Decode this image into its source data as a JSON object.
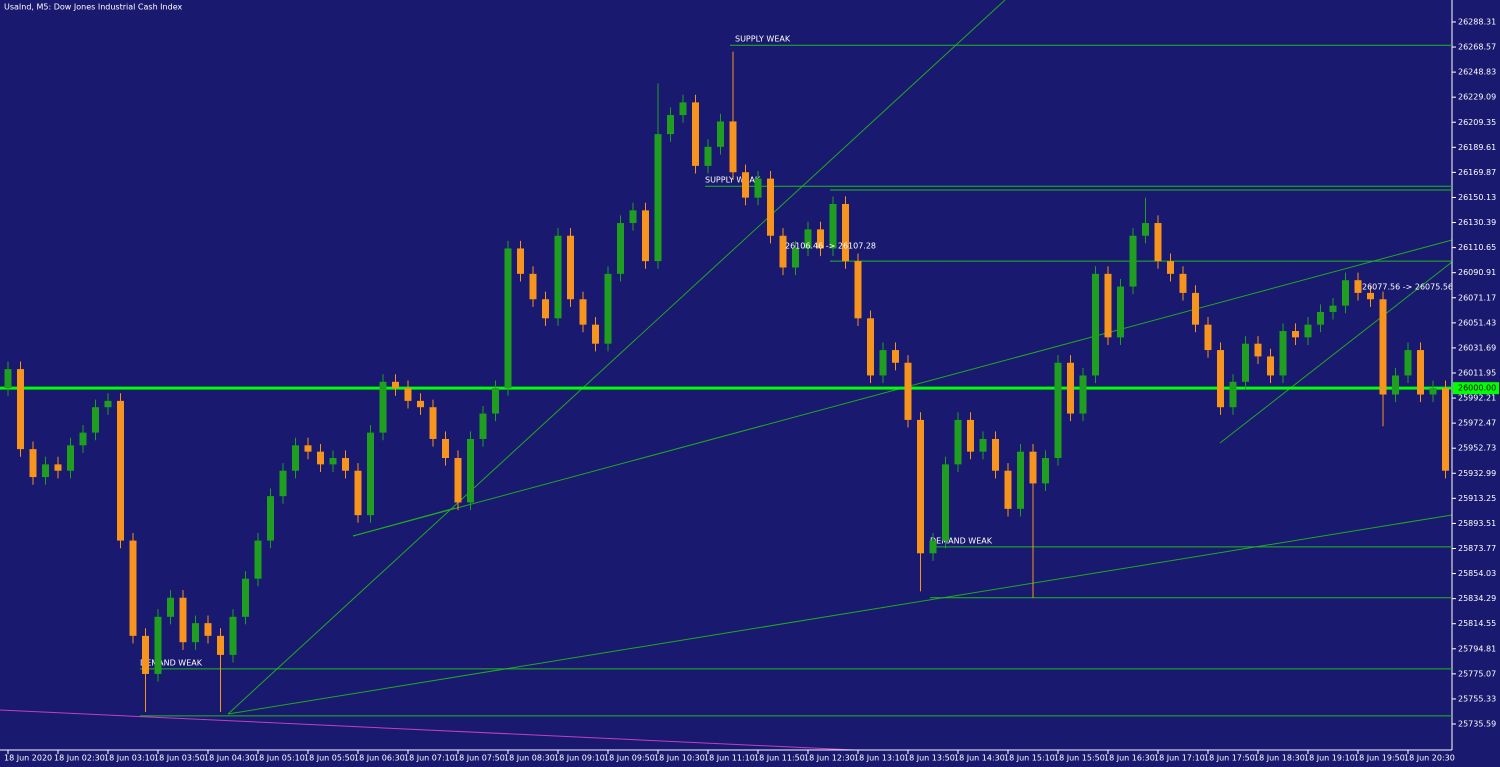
{
  "chart_data": {
    "type": "candlestick",
    "title": "UsaInd, M5:  Dow Jones Industrial Cash Index",
    "categories": [
      "18 Jun 2020",
      null,
      null,
      null,
      "18 Jun 02:30",
      null,
      null,
      null,
      "18 Jun 03:10",
      null,
      null,
      null,
      "18 Jun 03:50",
      null,
      null,
      null,
      "18 Jun 04:30",
      null,
      null,
      null,
      "18 Jun 05:10",
      null,
      null,
      null,
      "18 Jun 05:50",
      null,
      null,
      null,
      "18 Jun 06:30",
      null,
      null,
      null,
      "18 Jun 07:10",
      null,
      null,
      null,
      "18 Jun 07:50",
      null,
      null,
      null,
      "18 Jun 08:30",
      null,
      null,
      null,
      "18 Jun 09:10",
      null,
      null,
      null,
      "18 Jun 09:50",
      null,
      null,
      null,
      "18 Jun 10:30",
      null,
      null,
      null,
      "18 Jun 11:10",
      null,
      null,
      null,
      "18 Jun 11:50",
      null,
      null,
      null,
      "18 Jun 12:30",
      null,
      null,
      null,
      "18 Jun 13:10",
      null,
      null,
      null,
      "18 Jun 13:50",
      null,
      null,
      null,
      "18 Jun 14:30",
      null,
      null,
      null,
      "18 Jun 15:10",
      null,
      null,
      null,
      "18 Jun 15:50",
      null,
      null,
      null,
      "18 Jun 16:30",
      null,
      null,
      null,
      "18 Jun 17:10",
      null,
      null,
      null,
      "18 Jun 17:50",
      null,
      null,
      null,
      "18 Jun 18:30",
      null,
      null,
      null,
      "18 Jun 19:10",
      null,
      null,
      null,
      "18 Jun 19:50",
      null,
      null,
      null,
      "18 Jun 20:30",
      null,
      null,
      null
    ],
    "open": [
      26000,
      26015,
      25952,
      25930,
      25940,
      25935,
      25955,
      25965,
      25985,
      25990,
      25880,
      25805,
      25775,
      25820,
      25835,
      25800,
      25815,
      25805,
      25790,
      25820,
      25850,
      25880,
      25915,
      25935,
      25955,
      25950,
      25940,
      25945,
      25935,
      25900,
      25965,
      26005,
      26000,
      25990,
      25985,
      25960,
      25945,
      25910,
      25960,
      25980,
      26000,
      26110,
      26090,
      26070,
      26055,
      26120,
      26070,
      26050,
      26035,
      26090,
      26130,
      26140,
      26100,
      26200,
      26215,
      26225,
      26175,
      26190,
      26210,
      26170,
      26150,
      26165,
      26120,
      26095,
      26110,
      26125,
      26110,
      26145,
      26100,
      26055,
      26010,
      26030,
      26020,
      25975,
      25870,
      25880,
      25940,
      25975,
      25950,
      25960,
      25935,
      25905,
      25950,
      25925,
      25945,
      26020,
      25980,
      26010,
      26090,
      26040,
      26080,
      26120,
      26130,
      26100,
      26090,
      26075,
      26050,
      26030,
      25985,
      26005,
      26035,
      26025,
      26010,
      26045,
      26040,
      26050,
      26060,
      26065,
      26085,
      26075,
      26070,
      25995,
      26010,
      26030,
      25995,
      26000
    ],
    "high": [
      26021,
      26021,
      25958,
      25946,
      25946,
      25961,
      25971,
      25991,
      25996,
      25996,
      25886,
      25811,
      25826,
      25841,
      25841,
      25821,
      25821,
      25811,
      25826,
      25856,
      25886,
      25921,
      25941,
      25961,
      25961,
      25956,
      25951,
      25951,
      25941,
      25971,
      26011,
      26011,
      26006,
      25996,
      25991,
      25966,
      25951,
      25966,
      25986,
      26006,
      26116,
      26116,
      26096,
      26076,
      26126,
      26126,
      26076,
      26056,
      26096,
      26136,
      26146,
      26146,
      26240,
      26221,
      26231,
      26231,
      26196,
      26216,
      26265,
      26176,
      26171,
      26171,
      26126,
      26116,
      26131,
      26131,
      26151,
      26151,
      26106,
      26061,
      26036,
      26036,
      26026,
      25981,
      25886,
      25946,
      25981,
      25981,
      25966,
      25966,
      25941,
      25956,
      25956,
      25951,
      26026,
      26026,
      26016,
      26096,
      26096,
      26086,
      26126,
      26150,
      26136,
      26106,
      26096,
      26081,
      26056,
      26036,
      26011,
      26041,
      26041,
      26031,
      26051,
      26051,
      26056,
      26066,
      26071,
      26091,
      26091,
      26081,
      26076,
      26016,
      26036,
      26036,
      26006,
      26006
    ],
    "low": [
      25994,
      25946,
      25924,
      25924,
      25929,
      25929,
      25949,
      25959,
      25979,
      25874,
      25799,
      25745,
      25769,
      25814,
      25794,
      25794,
      25799,
      25745,
      25784,
      25814,
      25844,
      25874,
      25909,
      25929,
      25944,
      25934,
      25934,
      25929,
      25894,
      25894,
      25959,
      25994,
      25984,
      25979,
      25954,
      25939,
      25904,
      25904,
      25954,
      25974,
      25994,
      26084,
      26064,
      26049,
      26049,
      26064,
      26044,
      26029,
      26029,
      26084,
      26124,
      26094,
      26094,
      26194,
      26209,
      26169,
      26169,
      26184,
      26164,
      26144,
      26144,
      26114,
      26089,
      26089,
      26104,
      26104,
      26104,
      26094,
      26049,
      26004,
      26004,
      26014,
      25969,
      25840,
      25864,
      25874,
      25934,
      25944,
      25944,
      25929,
      25899,
      25899,
      25835,
      25919,
      25939,
      25974,
      25974,
      26004,
      26034,
      26034,
      26074,
      26114,
      26094,
      26084,
      26069,
      26044,
      26024,
      25979,
      25979,
      25999,
      26019,
      26004,
      26004,
      26034,
      26034,
      26044,
      26054,
      26059,
      26069,
      26064,
      25970,
      25989,
      26004,
      25989,
      25989,
      25929
    ],
    "close": [
      26015,
      25952,
      25930,
      25940,
      25935,
      25955,
      25965,
      25985,
      25990,
      25880,
      25805,
      25775,
      25820,
      25835,
      25800,
      25815,
      25805,
      25790,
      25820,
      25850,
      25880,
      25915,
      25935,
      25955,
      25950,
      25940,
      25945,
      25935,
      25900,
      25965,
      26005,
      26000,
      25990,
      25985,
      25960,
      25945,
      25910,
      25960,
      25980,
      26000,
      26110,
      26090,
      26070,
      26055,
      26120,
      26070,
      26050,
      26035,
      26090,
      26130,
      26140,
      26100,
      26200,
      26215,
      26225,
      26175,
      26190,
      26210,
      26170,
      26150,
      26165,
      26120,
      26095,
      26110,
      26125,
      26110,
      26145,
      26100,
      26055,
      26010,
      26030,
      26020,
      25975,
      25870,
      25880,
      25940,
      25975,
      25950,
      25960,
      25935,
      25905,
      25950,
      25925,
      25945,
      26020,
      25980,
      26010,
      26090,
      26040,
      26080,
      26120,
      26130,
      26100,
      26090,
      26075,
      26050,
      26030,
      25985,
      26005,
      26035,
      26025,
      26010,
      26045,
      26040,
      26050,
      26060,
      26065,
      26085,
      26075,
      26070,
      25995,
      26010,
      26030,
      25995,
      26000,
      25935
    ],
    "up_color": "#1f9e1f",
    "down_color": "#f7941d",
    "ylim": [
      25716.7,
      26305.6
    ],
    "yticks": [
      26288.31,
      26268.57,
      26248.83,
      26229.09,
      26209.35,
      26189.61,
      26169.87,
      26150.13,
      26130.39,
      26110.65,
      26090.91,
      26071.17,
      26051.43,
      26031.69,
      26011.95,
      25992.21,
      25972.47,
      25952.73,
      25932.99,
      25913.25,
      25893.51,
      25873.77,
      25854.03,
      25834.29,
      25814.55,
      25794.81,
      25775.07,
      25755.33,
      25735.59
    ],
    "price_line": {
      "value": 26000,
      "label": "26000.00"
    },
    "zones": [
      {
        "price": 26270,
        "label": "SUPPLY WEAK"
      },
      {
        "price": 26159,
        "label": "SUPPLY WEAK"
      },
      {
        "price": 26156
      },
      {
        "price": 26100
      },
      {
        "price": 25875,
        "label": "DEMAND WEAK"
      },
      {
        "price": 25835
      },
      {
        "price": 25779,
        "label": "DEMAND WEAK"
      },
      {
        "price": 25742
      }
    ],
    "annotations": [
      "26106.46 -> 26107.28",
      "26077.56 -> 26075.56"
    ]
  }
}
